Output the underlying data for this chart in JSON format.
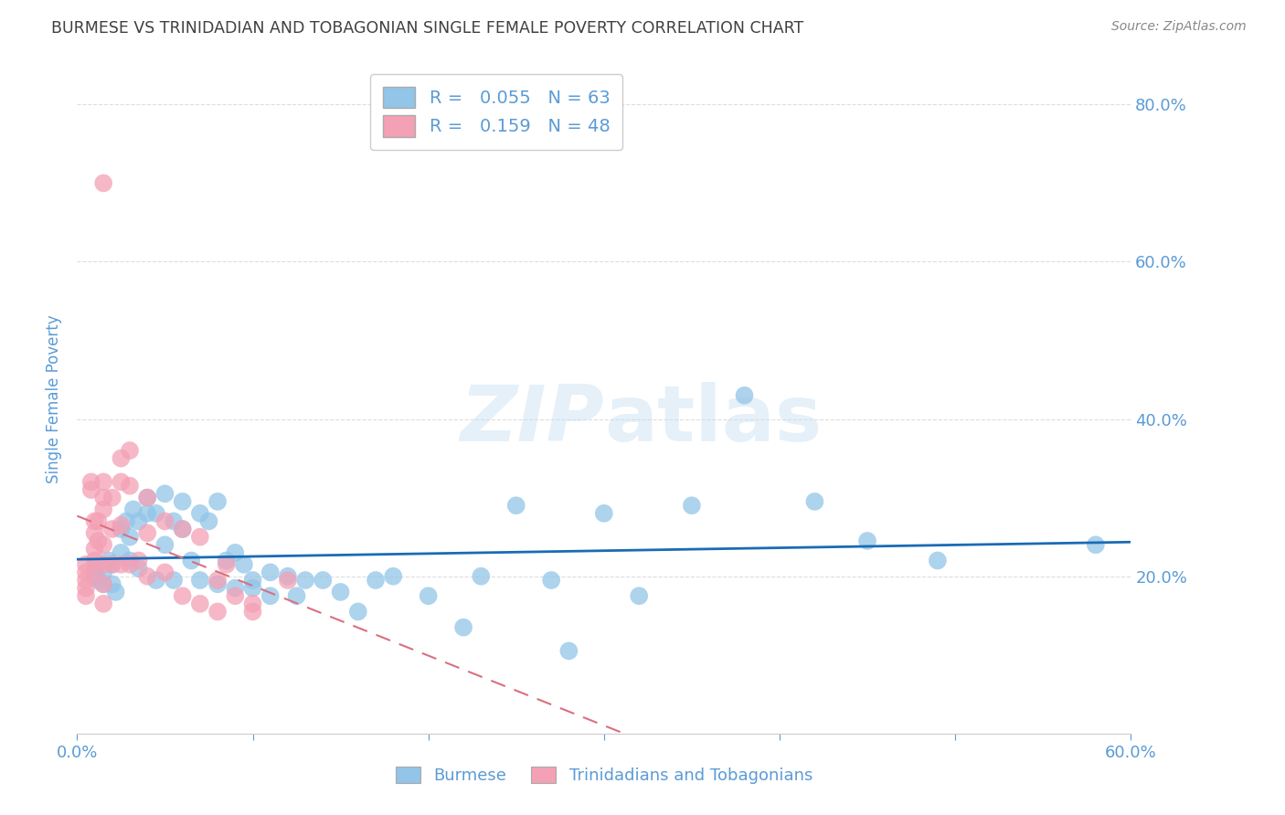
{
  "title": "BURMESE VS TRINIDADIAN AND TOBAGONIAN SINGLE FEMALE POVERTY CORRELATION CHART",
  "source": "Source: ZipAtlas.com",
  "xlabel_label": "Burmese",
  "xlabel_label2": "Trinidadians and Tobagonians",
  "ylabel": "Single Female Poverty",
  "r1": 0.055,
  "n1": 63,
  "r2": 0.159,
  "n2": 48,
  "xlim": [
    0.0,
    60.0
  ],
  "ylim": [
    0.0,
    85.0
  ],
  "yticks": [
    20.0,
    40.0,
    60.0,
    80.0
  ],
  "xticks": [
    0.0,
    10.0,
    20.0,
    30.0,
    40.0,
    50.0,
    60.0
  ],
  "color_blue": "#92C5E8",
  "color_pink": "#F4A0B5",
  "trendline_blue": "#1a6bb5",
  "trendline_pink": "#D97080",
  "blue_points_x": [
    1.0,
    1.0,
    1.2,
    1.5,
    1.5,
    1.8,
    2.0,
    2.0,
    2.2,
    2.5,
    2.5,
    2.8,
    3.0,
    3.0,
    3.2,
    3.5,
    3.5,
    4.0,
    4.0,
    4.5,
    4.5,
    5.0,
    5.0,
    5.5,
    5.5,
    6.0,
    6.0,
    6.5,
    7.0,
    7.0,
    7.5,
    8.0,
    8.0,
    8.5,
    9.0,
    9.0,
    9.5,
    10.0,
    10.0,
    11.0,
    11.0,
    12.0,
    12.5,
    13.0,
    14.0,
    15.0,
    16.0,
    17.0,
    18.0,
    20.0,
    22.0,
    23.0,
    25.0,
    27.0,
    28.0,
    30.0,
    32.0,
    35.0,
    38.0,
    42.0,
    45.0,
    49.0,
    58.0
  ],
  "blue_points_y": [
    21.0,
    20.0,
    19.5,
    20.5,
    19.0,
    22.0,
    21.5,
    19.0,
    18.0,
    26.0,
    23.0,
    27.0,
    25.0,
    22.0,
    28.5,
    27.0,
    21.0,
    30.0,
    28.0,
    19.5,
    28.0,
    24.0,
    30.5,
    27.0,
    19.5,
    29.5,
    26.0,
    22.0,
    28.0,
    19.5,
    27.0,
    29.5,
    19.0,
    22.0,
    18.5,
    23.0,
    21.5,
    19.5,
    18.5,
    20.5,
    17.5,
    20.0,
    17.5,
    19.5,
    19.5,
    18.0,
    15.5,
    19.5,
    20.0,
    17.5,
    13.5,
    20.0,
    29.0,
    19.5,
    10.5,
    28.0,
    17.5,
    29.0,
    43.0,
    29.5,
    24.5,
    22.0,
    24.0
  ],
  "pink_points_x": [
    0.5,
    0.5,
    0.5,
    0.5,
    0.5,
    0.8,
    0.8,
    1.0,
    1.0,
    1.0,
    1.0,
    1.0,
    1.2,
    1.2,
    1.5,
    1.5,
    1.5,
    1.5,
    1.5,
    1.5,
    1.5,
    2.0,
    2.0,
    2.0,
    2.5,
    2.5,
    2.5,
    2.5,
    3.0,
    3.0,
    3.0,
    3.5,
    4.0,
    4.0,
    4.0,
    5.0,
    5.0,
    6.0,
    6.0,
    7.0,
    7.0,
    8.0,
    8.0,
    8.5,
    9.0,
    10.0,
    10.0,
    12.0
  ],
  "pink_points_y": [
    21.5,
    20.5,
    19.5,
    18.5,
    17.5,
    32.0,
    31.0,
    27.0,
    25.5,
    23.5,
    22.0,
    20.5,
    27.0,
    24.5,
    32.0,
    30.0,
    28.5,
    24.0,
    21.5,
    19.0,
    16.5,
    30.0,
    26.0,
    21.5,
    35.0,
    32.0,
    26.5,
    21.5,
    36.0,
    31.5,
    21.5,
    22.0,
    30.0,
    25.5,
    20.0,
    27.0,
    20.5,
    26.0,
    17.5,
    25.0,
    16.5,
    19.5,
    15.5,
    21.5,
    17.5,
    16.5,
    15.5,
    19.5
  ],
  "pink_outlier_x": 1.5,
  "pink_outlier_y": 70.0,
  "background_color": "#ffffff",
  "grid_color": "#dddddd",
  "axis_color": "#5b9bd5",
  "label_color": "#5b9bd5",
  "title_color": "#404040"
}
